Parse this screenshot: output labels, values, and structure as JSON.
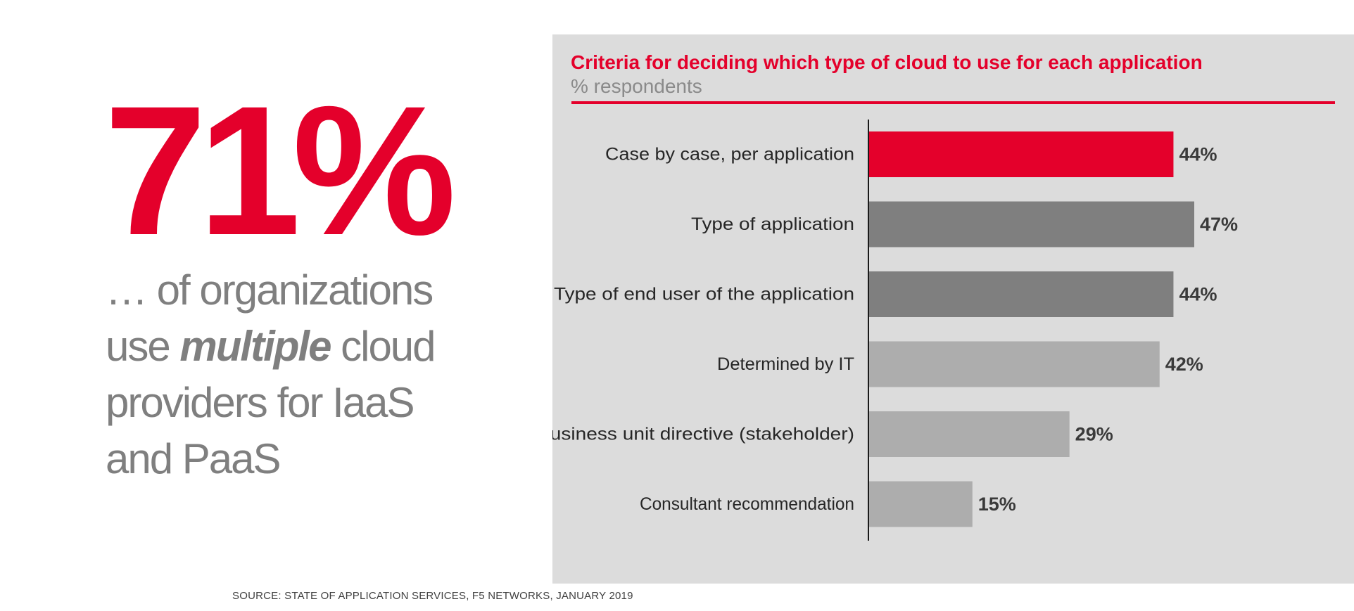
{
  "headline": {
    "value": "71%"
  },
  "subtext": {
    "line1": "… of organizations",
    "line2_before": "use ",
    "line2_emphasis": "multiple",
    "line2_after": " cloud",
    "line3": "providers for IaaS",
    "line4": "and PaaS"
  },
  "colors": {
    "accent": "#e4002b",
    "panel_background": "#dcdcdc",
    "dark_gray": "#7f7f7f",
    "light_gray": "#adadad",
    "label_text": "#262626",
    "value_text": "#3a3a3a"
  },
  "chart_data": {
    "type": "bar",
    "orientation": "horizontal",
    "title": "Criteria for deciding which type of cloud to use for each application",
    "subtitle": "% respondents",
    "categories": [
      "Case by case, per application",
      "Type of application",
      "Type of end user of the application",
      "Determined by IT",
      "Business unit directive (stakeholder)",
      "Consultant recommendation"
    ],
    "values": [
      44,
      47,
      44,
      42,
      29,
      15
    ],
    "value_labels": [
      "44%",
      "47%",
      "44%",
      "42%",
      "29%",
      "15%"
    ],
    "bar_colors": [
      "#e4002b",
      "#7f7f7f",
      "#7f7f7f",
      "#adadad",
      "#adadad",
      "#adadad"
    ],
    "xlim": [
      0,
      47
    ],
    "grid": false,
    "legend": "none"
  },
  "footer": {
    "source": "SOURCE: STATE OF APPLICATION SERVICES, F5 NETWORKS, JANUARY 2019"
  }
}
